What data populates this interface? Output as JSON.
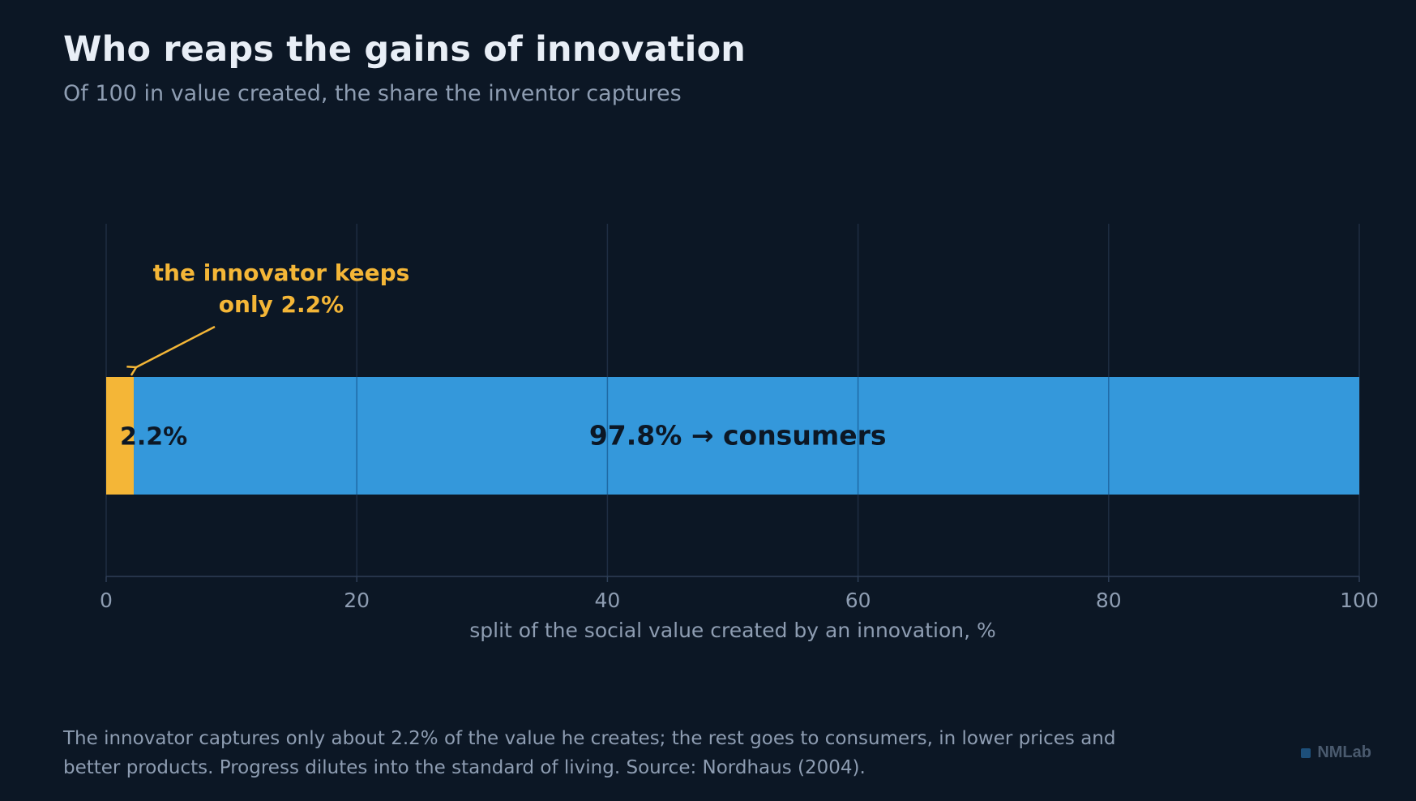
{
  "header": {
    "title": "Who reaps the gains of innovation",
    "subtitle": "Of 100 in value created, the share the inventor captures"
  },
  "footer": {
    "note": "The innovator captures only about 2.2% of the value he creates; the rest goes to consumers, in lower prices and better products. Progress dilutes into the standard of living. Source: Nordhaus (2004).",
    "brand": "NMLab"
  },
  "colors": {
    "background": "#0c1725",
    "innovator": "#f4b637",
    "consumers": "#3498db",
    "gridline": "#1e2d42",
    "tick_text": "#8e9db2",
    "bar_label": "#0c1725"
  },
  "chart_data": {
    "type": "bar",
    "orientation": "horizontal",
    "stacked": true,
    "segments": [
      {
        "value": 2.2,
        "label": "2.2%",
        "color": "#f4b637"
      },
      {
        "value": 97.8,
        "label": "97.8% → consumers",
        "color": "#3498db"
      }
    ],
    "xlabel": "split of the social value created by an innovation, %",
    "xlim": [
      0,
      100
    ],
    "xticks": [
      0,
      20,
      40,
      60,
      80,
      100
    ],
    "grid": true,
    "annotation": {
      "lines": [
        "the innovator keeps",
        "only 2.2%"
      ],
      "points_to_value": 2.2
    }
  }
}
